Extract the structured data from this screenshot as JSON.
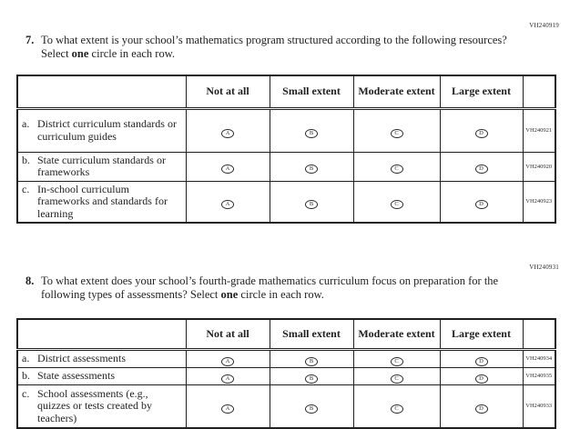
{
  "page": {
    "answer_options": [
      "A",
      "B",
      "C",
      "D"
    ],
    "questions": [
      {
        "number": "7.",
        "code": "VH240919",
        "text_parts": {
          "before": "To what extent is your school’s mathematics program structured according to the following resources? Select ",
          "bold": "one",
          "after": " circle in each row."
        },
        "table": {
          "headers": [
            "",
            "Not at all",
            "Small extent",
            "Moderate extent",
            "Large extent",
            ""
          ],
          "rows": [
            {
              "letter": "a.",
              "label": "District curriculum standards or curriculum guides",
              "code": "VH240921"
            },
            {
              "letter": "b.",
              "label": "State curriculum standards or frameworks",
              "code": "VH240920"
            },
            {
              "letter": "c.",
              "label": "In-school curriculum frameworks and standards for learning",
              "code": "VH240923"
            }
          ]
        }
      },
      {
        "number": "8.",
        "code": "VH240931",
        "text_parts": {
          "before": "To what extent does your school’s fourth-grade mathematics curriculum focus on preparation for the following types of assessments? Select ",
          "bold": "one",
          "after": " circle in each row."
        },
        "table": {
          "headers": [
            "",
            "Not at all",
            "Small extent",
            "Moderate extent",
            "Large extent",
            ""
          ],
          "rows": [
            {
              "letter": "a.",
              "label": "District assessments",
              "code": "VH240934"
            },
            {
              "letter": "b.",
              "label": "State assessments",
              "code": "VH240935"
            },
            {
              "letter": "c.",
              "label": "School assessments (e.g., quizzes or tests created by teachers)",
              "code": "VH240933"
            }
          ]
        }
      }
    ]
  }
}
